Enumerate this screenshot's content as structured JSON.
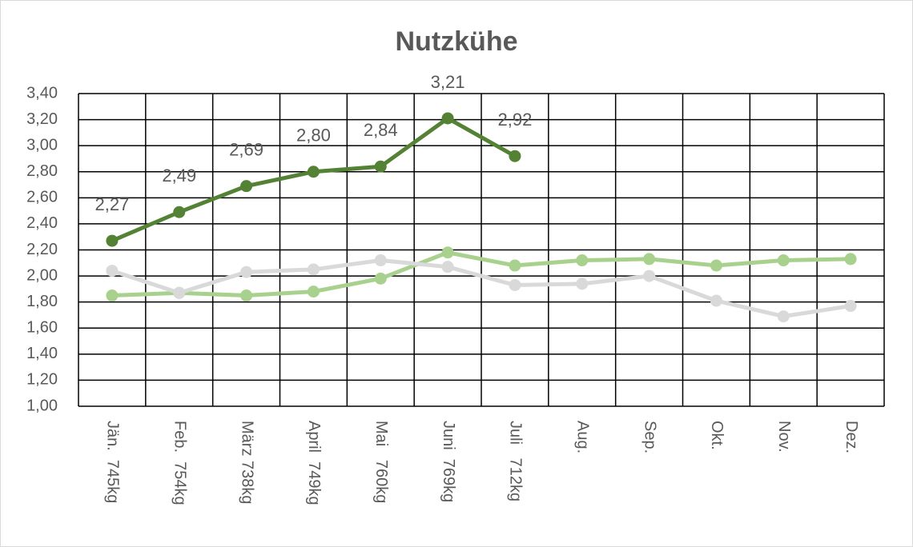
{
  "chart_data": {
    "type": "line",
    "title": "Nutzkühe",
    "categories": [
      "Jän.  745kg",
      "Feb.  754kg",
      "März 738kg",
      "April  749kg",
      "Mai   760kg",
      "Juni  769kg",
      "Juli   712kg",
      "Aug.",
      "Sep.",
      "Okt.",
      "Nov.",
      "Dez."
    ],
    "series": [
      {
        "color": "#548235",
        "values": [
          2.27,
          2.49,
          2.69,
          2.8,
          2.84,
          3.21,
          2.92,
          null,
          null,
          null,
          null,
          null
        ],
        "value_labels": [
          "2,27",
          "2,49",
          "2,69",
          "2,80",
          "2,84",
          "3,21",
          "2,92",
          null,
          null,
          null,
          null,
          null
        ]
      },
      {
        "color": "#a9d18e",
        "values": [
          1.85,
          1.87,
          1.85,
          1.88,
          1.98,
          2.18,
          2.08,
          2.12,
          2.13,
          2.08,
          2.12,
          2.13
        ]
      },
      {
        "color": "#d9d9d9",
        "values": [
          2.04,
          1.87,
          2.03,
          2.05,
          2.12,
          2.07,
          1.93,
          1.94,
          2.0,
          1.81,
          1.69,
          1.77
        ]
      }
    ],
    "ylim": [
      1.0,
      3.4
    ],
    "yticks": [
      {
        "value": 1.0,
        "label": "1,00"
      },
      {
        "value": 1.2,
        "label": "1,20"
      },
      {
        "value": 1.4,
        "label": "1,40"
      },
      {
        "value": 1.6,
        "label": "1,60"
      },
      {
        "value": 1.8,
        "label": "1,80"
      },
      {
        "value": 2.0,
        "label": "2,00"
      },
      {
        "value": 2.2,
        "label": "2,20"
      },
      {
        "value": 2.4,
        "label": "2,40"
      },
      {
        "value": 2.6,
        "label": "2,60"
      },
      {
        "value": 2.8,
        "label": "2,80"
      },
      {
        "value": 3.0,
        "label": "3,00"
      },
      {
        "value": 3.2,
        "label": "3,20"
      },
      {
        "value": 3.4,
        "label": "3,40"
      }
    ],
    "grid": true
  }
}
